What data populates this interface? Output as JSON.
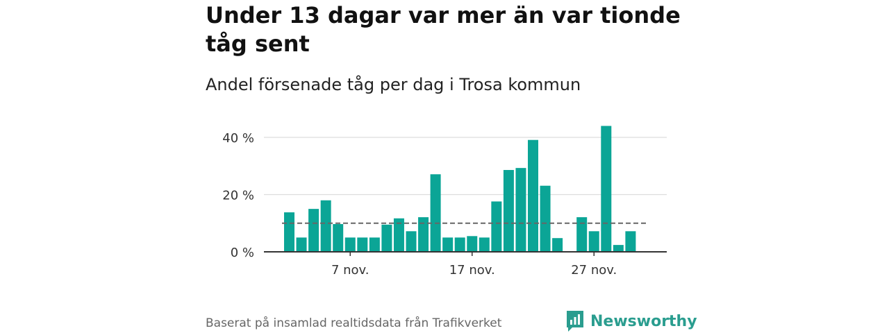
{
  "title": "Under 13 dagar var mer än var tionde tåg sent",
  "subtitle": "Andel försenade tåg per dag i Trosa kommun",
  "source": "Baserat på insamlad realtidsdata från Trafikverket",
  "brand": {
    "name": "Newsworthy",
    "icon": "newsworthy-logo-icon"
  },
  "colors": {
    "bar": "#0ba596",
    "reference_line": "#666666",
    "grid": "#dddddd",
    "axis": "#333333"
  },
  "chart_data": {
    "type": "bar",
    "x": [
      "2 nov.",
      "3 nov.",
      "4 nov.",
      "5 nov.",
      "6 nov.",
      "7 nov.",
      "8 nov.",
      "9 nov.",
      "10 nov.",
      "11 nov.",
      "12 nov.",
      "13 nov.",
      "14 nov.",
      "15 nov.",
      "16 nov.",
      "17 nov.",
      "18 nov.",
      "19 nov.",
      "20 nov.",
      "21 nov.",
      "22 nov.",
      "23 nov.",
      "24 nov.",
      "25 nov.",
      "26 nov.",
      "27 nov.",
      "28 nov.",
      "29 nov."
    ],
    "values": [
      13.8,
      5.0,
      15.0,
      18.0,
      9.7,
      5.0,
      5.0,
      5.0,
      9.5,
      11.7,
      7.2,
      12.1,
      27.1,
      5.0,
      5.0,
      5.5,
      5.0,
      17.6,
      28.6,
      29.3,
      39.1,
      23.1,
      4.8,
      null,
      12.1,
      7.2,
      44.0,
      2.4
    ],
    "extra_values": [
      {
        "x": "30 nov.",
        "value": 7.2
      }
    ],
    "reference_line": 10,
    "ylim": [
      0,
      45
    ],
    "yticks": [
      0,
      20,
      40
    ],
    "ytick_labels": [
      "0 %",
      "20 %",
      "40 %"
    ],
    "xticks": [
      "7 nov.",
      "17 nov.",
      "27 nov."
    ],
    "grid": true,
    "xlabel": "",
    "ylabel": ""
  }
}
